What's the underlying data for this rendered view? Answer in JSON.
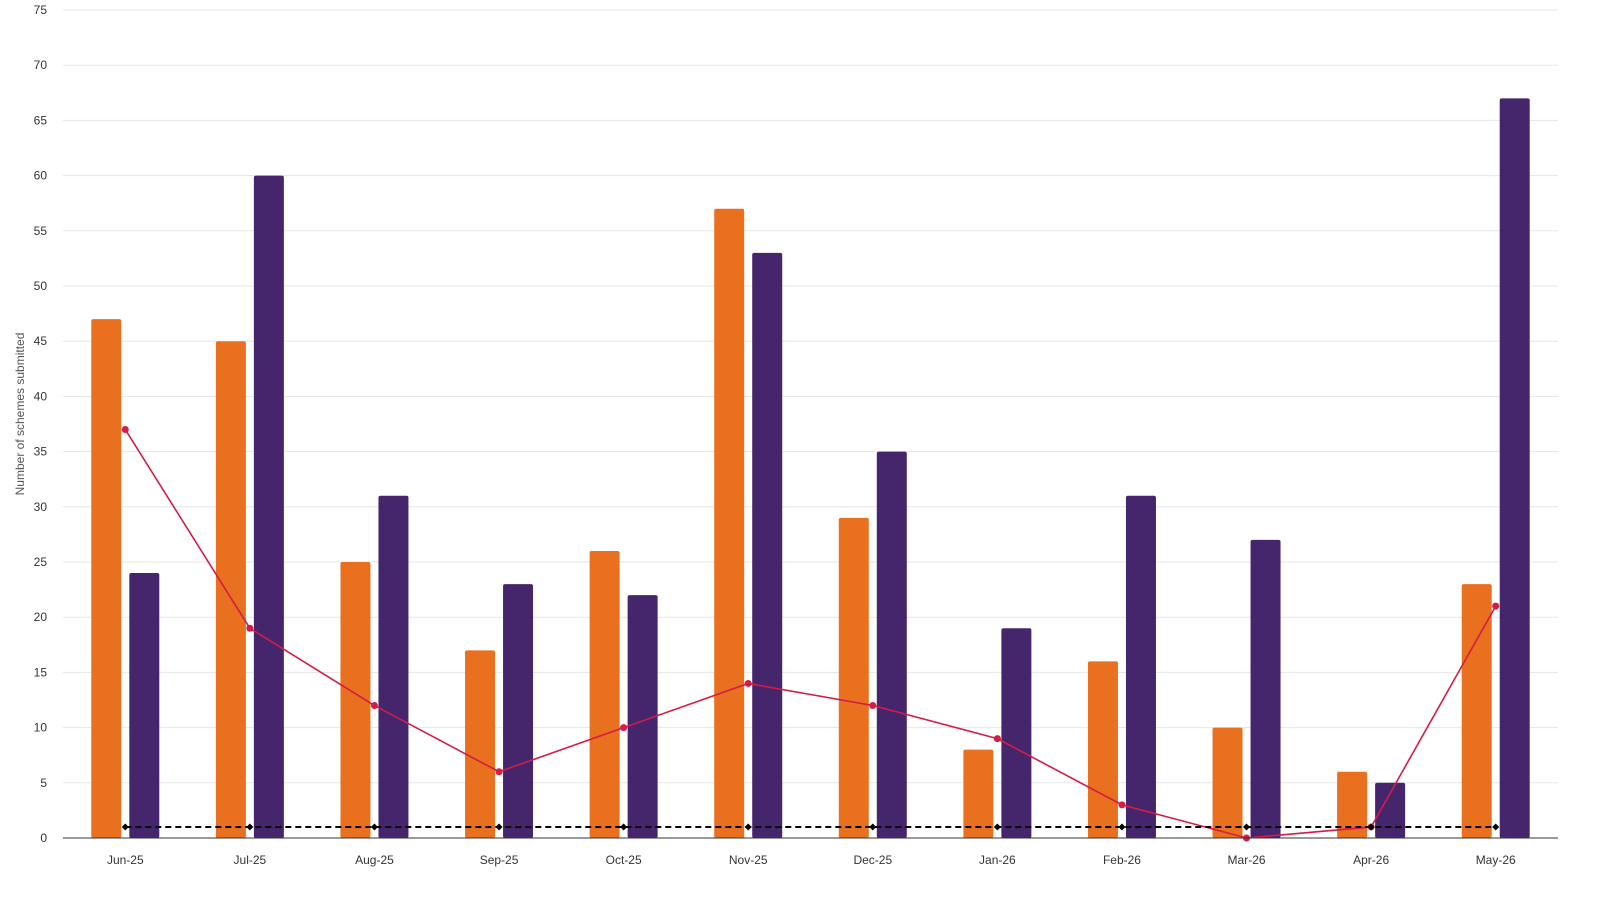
{
  "chart_data": {
    "type": "bar",
    "ylabel": "Number of schemes submitted",
    "xlabel": "",
    "ylim": [
      0,
      75
    ],
    "yticks": [
      0,
      5,
      10,
      15,
      20,
      25,
      30,
      35,
      40,
      45,
      50,
      55,
      60,
      65,
      70,
      75
    ],
    "grid": true,
    "categories": [
      "Jun-25",
      "Jul-25",
      "Aug-25",
      "Sep-25",
      "Oct-25",
      "Nov-25",
      "Dec-25",
      "Jan-26",
      "Feb-26",
      "Mar-26",
      "Apr-26",
      "May-26"
    ],
    "series": [
      {
        "type": "bar",
        "color": "#e8701e",
        "values": [
          47,
          45,
          25,
          17,
          26,
          57,
          29,
          8,
          16,
          10,
          6,
          23
        ]
      },
      {
        "type": "bar",
        "color": "#45266d",
        "values": [
          24,
          60,
          31,
          23,
          22,
          53,
          35,
          19,
          31,
          27,
          5,
          67
        ]
      },
      {
        "type": "line",
        "color": "#d41c46",
        "marker": "circle",
        "values": [
          37,
          19,
          12,
          6,
          10,
          14,
          12,
          9,
          3,
          0,
          1,
          21
        ]
      },
      {
        "type": "line",
        "color": "#000000",
        "marker": "diamond",
        "dash": "dashed",
        "values": [
          1,
          1,
          1,
          1,
          1,
          1,
          1,
          1,
          1,
          1,
          1,
          1
        ]
      }
    ]
  }
}
